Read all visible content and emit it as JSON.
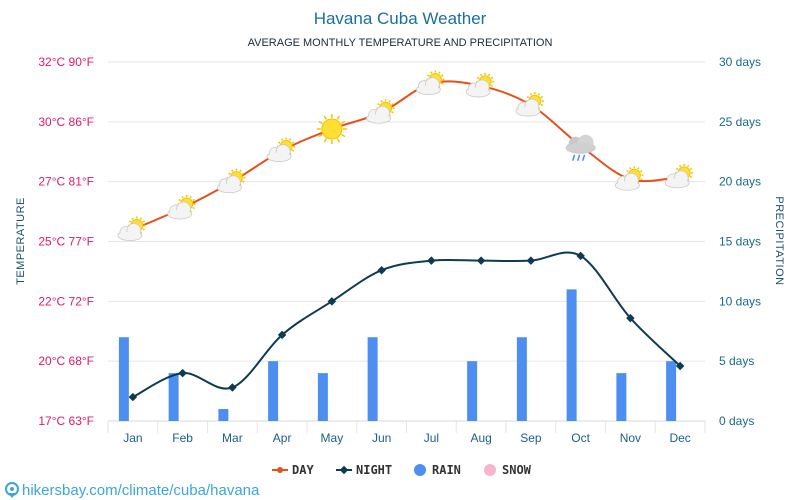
{
  "header": {
    "title": "Havana Cuba Weather",
    "subtitle": "AVERAGE MONTHLY TEMPERATURE AND PRECIPITATION"
  },
  "footer": {
    "source": "hikersbay.com/climate/cuba/havana"
  },
  "colors": {
    "day": "#e8501a",
    "night": "#0e3b52",
    "rain": "#4d8ff0",
    "snow": "#f7b6cb",
    "left_axis": "#e0186c",
    "right_axis": "#1a6a8a",
    "title": "#1a6fa0"
  },
  "chart_data": {
    "type": "line",
    "title": "Havana Cuba Weather",
    "subtitle": "AVERAGE MONTHLY TEMPERATURE AND PRECIPITATION",
    "categories": [
      "Jan",
      "Feb",
      "Mar",
      "Apr",
      "May",
      "Jun",
      "Jul",
      "Aug",
      "Sep",
      "Oct",
      "Nov",
      "Dec"
    ],
    "ylabel": "TEMPERATURE",
    "y2label": "PRECIPITATION",
    "ylim": [
      17.5,
      32.5
    ],
    "y2lim": [
      0,
      30
    ],
    "left_ticks": [
      {
        "value": 17.5,
        "label": "17°C 63°F"
      },
      {
        "value": 20,
        "label": "20°C 68°F"
      },
      {
        "value": 22.5,
        "label": "22°C 72°F"
      },
      {
        "value": 25,
        "label": "25°C 77°F"
      },
      {
        "value": 27.5,
        "label": "27°C 81°F"
      },
      {
        "value": 30,
        "label": "30°C 86°F"
      },
      {
        "value": 32.5,
        "label": "32°C 90°F"
      }
    ],
    "right_ticks": [
      {
        "value": 0,
        "label": "0 days"
      },
      {
        "value": 5,
        "label": "5 days"
      },
      {
        "value": 10,
        "label": "10 days"
      },
      {
        "value": 15,
        "label": "15 days"
      },
      {
        "value": 20,
        "label": "20 days"
      },
      {
        "value": 25,
        "label": "25 days"
      },
      {
        "value": 30,
        "label": "30 days"
      }
    ],
    "series": [
      {
        "name": "DAY",
        "kind": "line",
        "axis": "left",
        "color": "#e8501a",
        "values": [
          25.5,
          26.4,
          27.5,
          28.8,
          29.7,
          30.4,
          31.6,
          31.5,
          30.7,
          29.0,
          27.6,
          27.7
        ]
      },
      {
        "name": "NIGHT",
        "kind": "line",
        "axis": "left",
        "color": "#0e3b52",
        "values": [
          18.5,
          19.5,
          18.9,
          21.1,
          22.5,
          23.8,
          24.2,
          24.2,
          24.2,
          24.4,
          21.8,
          19.8
        ]
      },
      {
        "name": "RAIN",
        "kind": "bar",
        "axis": "right",
        "color": "#4d8ff0",
        "values": [
          7,
          4,
          1,
          5,
          4,
          7,
          0,
          5,
          7,
          11,
          4,
          5
        ]
      },
      {
        "name": "SNOW",
        "kind": "bar",
        "axis": "right",
        "color": "#f7b6cb",
        "values": [
          0,
          0,
          0,
          0,
          0,
          0,
          0,
          0,
          0,
          0,
          0,
          0
        ]
      }
    ],
    "day_icons": [
      "partly-cloudy-icon",
      "partly-cloudy-icon",
      "partly-cloudy-icon",
      "partly-cloudy-icon",
      "sun-icon",
      "partly-cloudy-icon",
      "partly-cloudy-icon",
      "partly-cloudy-icon",
      "partly-cloudy-icon",
      "rain-cloud-icon",
      "partly-cloudy-icon",
      "partly-cloudy-icon"
    ],
    "legend": {
      "placement": "bottom-center",
      "entries": [
        "DAY",
        "NIGHT",
        "RAIN",
        "SNOW"
      ]
    },
    "grid": true
  }
}
